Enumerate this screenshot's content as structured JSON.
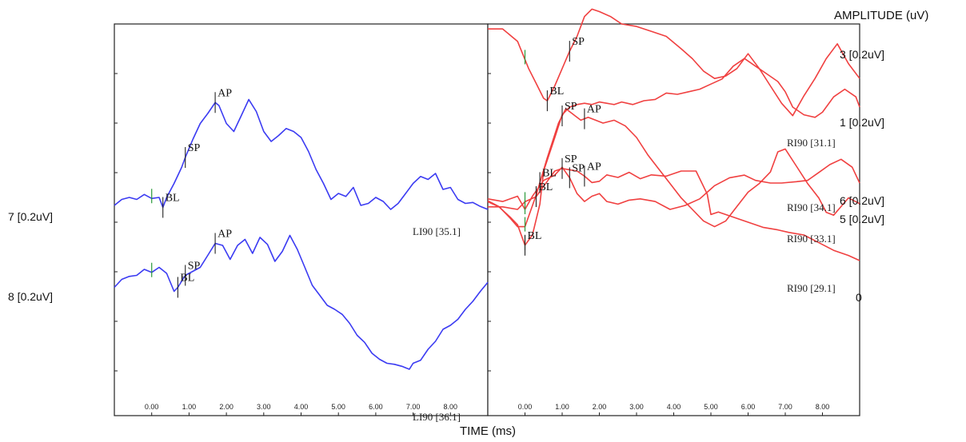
{
  "axis_title_right": "AMPLITUDE (uV)",
  "axis_title_bottom": "TIME (ms)",
  "left_labels": [
    "7 [0.2uV]",
    "8 [0.2uV]"
  ],
  "right_labels": [
    "3 [0.2uV]",
    "1 [0.2uV]",
    "6 [0.2uV]",
    "5 [0.2uV]",
    "0"
  ],
  "colors": {
    "left_traces": "#3b3bf2",
    "right_traces": "#f04040",
    "marker": "#222222",
    "stim_marker": "#2a9a3a",
    "axes": "#222222"
  },
  "chart_data": [
    {
      "type": "line",
      "panel": "left",
      "xlim": [
        -1.0,
        9.0
      ],
      "x_ticks": [
        "0.00",
        "1.00",
        "2.00",
        "3.00",
        "4.00",
        "5.00",
        "6.00",
        "7.00",
        "8.00"
      ],
      "series": [
        {
          "id": "trace-7",
          "x": [
            -1.0,
            -0.8,
            -0.6,
            -0.4,
            -0.2,
            0.0,
            0.2,
            0.3,
            0.4,
            0.6,
            0.8,
            0.9,
            1.1,
            1.3,
            1.5,
            1.7,
            1.8,
            2.0,
            2.2,
            2.4,
            2.6,
            2.8,
            3.0,
            3.2,
            3.4,
            3.6,
            3.8,
            4.0,
            4.2,
            4.4,
            4.6,
            4.8,
            5.0,
            5.2,
            5.4,
            5.6,
            5.8,
            6.0,
            6.2,
            6.4,
            6.6,
            6.8,
            7.0,
            7.2,
            7.4,
            7.6,
            7.8,
            8.0,
            8.2,
            8.4,
            8.6,
            8.8,
            9.0
          ],
          "y": [
            0.2,
            0.5,
            0.6,
            0.5,
            0.75,
            0.55,
            0.6,
            0.1,
            0.6,
            1.3,
            2.1,
            2.6,
            3.5,
            4.3,
            4.8,
            5.35,
            5.2,
            4.3,
            3.9,
            4.7,
            5.5,
            4.9,
            3.9,
            3.4,
            3.7,
            4.05,
            3.9,
            3.6,
            2.9,
            2.0,
            1.3,
            0.5,
            0.8,
            0.65,
            1.1,
            0.2,
            0.3,
            0.6,
            0.4,
            0.0,
            0.3,
            0.8,
            1.3,
            1.65,
            1.5,
            1.8,
            1.0,
            1.1,
            0.5,
            0.3,
            0.35,
            0.15,
            0.0
          ],
          "markers": [
            {
              "label": "BL",
              "x": 0.3
            },
            {
              "label": "SP",
              "x": 0.9
            },
            {
              "label": "AP",
              "x": 1.7
            }
          ],
          "end_label": "LI90 [35.1]"
        },
        {
          "id": "trace-8",
          "x": [
            -1.0,
            -0.8,
            -0.6,
            -0.4,
            -0.2,
            0.0,
            0.2,
            0.4,
            0.6,
            0.7,
            0.9,
            1.1,
            1.3,
            1.5,
            1.7,
            1.9,
            2.1,
            2.3,
            2.5,
            2.7,
            2.9,
            3.1,
            3.3,
            3.5,
            3.7,
            3.9,
            4.1,
            4.3,
            4.5,
            4.7,
            4.9,
            5.1,
            5.3,
            5.5,
            5.7,
            5.9,
            6.1,
            6.3,
            6.5,
            6.7,
            6.9,
            7.0,
            7.2,
            7.4,
            7.6,
            7.8,
            8.0,
            8.2,
            8.4,
            8.6,
            8.8,
            9.0
          ],
          "y": [
            0.5,
            0.9,
            1.05,
            1.1,
            1.4,
            1.25,
            1.5,
            1.2,
            0.3,
            0.5,
            1.1,
            1.3,
            1.5,
            2.1,
            2.7,
            2.6,
            1.9,
            2.6,
            2.9,
            2.2,
            3.0,
            2.65,
            1.8,
            2.3,
            3.1,
            2.4,
            1.5,
            0.6,
            0.1,
            -0.4,
            -0.6,
            -0.85,
            -1.3,
            -1.9,
            -2.25,
            -2.8,
            -3.1,
            -3.3,
            -3.35,
            -3.45,
            -3.6,
            -3.3,
            -3.15,
            -2.6,
            -2.2,
            -1.6,
            -1.4,
            -1.1,
            -0.6,
            -0.2,
            0.3,
            0.75
          ],
          "markers": [
            {
              "label": "BL",
              "x": 0.7
            },
            {
              "label": "SP",
              "x": 0.9
            },
            {
              "label": "AP",
              "x": 1.7
            }
          ],
          "end_label": "LI90 [36.1]"
        }
      ]
    },
    {
      "type": "line",
      "panel": "right",
      "xlim": [
        -1.0,
        9.0
      ],
      "x_ticks": [
        "0.00",
        "1.00",
        "2.00",
        "3.00",
        "4.00",
        "5.00",
        "6.00",
        "7.00",
        "8.00"
      ],
      "series": [
        {
          "id": "trace-3",
          "x": [
            -1.0,
            -0.6,
            -0.2,
            0.1,
            0.3,
            0.5,
            0.6,
            0.8,
            1.0,
            1.2,
            1.4,
            1.6,
            1.8,
            2.0,
            2.3,
            2.6,
            3.0,
            3.4,
            3.8,
            4.2,
            4.5,
            4.8,
            5.1,
            5.4,
            5.7,
            6.0,
            6.3,
            6.6,
            6.9,
            7.2,
            7.5,
            7.8,
            8.1,
            8.4,
            8.7,
            9.0
          ],
          "y": [
            4.8,
            4.8,
            4.3,
            3.2,
            2.6,
            2.0,
            1.9,
            2.5,
            3.2,
            3.9,
            4.5,
            5.3,
            5.6,
            5.5,
            5.3,
            5.0,
            4.9,
            4.7,
            4.5,
            4.0,
            3.6,
            3.1,
            2.8,
            2.9,
            3.2,
            3.8,
            3.2,
            2.5,
            1.8,
            1.3,
            2.1,
            2.8,
            3.6,
            4.2,
            3.4,
            2.8
          ],
          "markers": [
            {
              "label": "SP",
              "x": 1.2
            },
            {
              "label": "BL",
              "x": 0.6
            }
          ]
        },
        {
          "id": "trace-1",
          "x": [
            -1.0,
            -0.6,
            -0.2,
            0.0,
            0.3,
            0.6,
            0.8,
            1.0,
            1.2,
            1.4,
            1.6,
            1.8,
            2.0,
            2.2,
            2.5,
            2.8,
            3.1,
            3.4,
            3.8,
            4.2,
            4.6,
            4.9,
            5.0,
            5.2,
            5.6,
            6.0,
            6.4,
            6.8,
            7.1,
            7.5,
            7.9,
            8.3,
            8.7,
            9.0
          ],
          "y": [
            0.1,
            0.1,
            0.0,
            0.3,
            0.5,
            1.1,
            1.5,
            1.6,
            1.55,
            1.5,
            1.3,
            1.05,
            1.1,
            1.35,
            1.25,
            1.45,
            1.2,
            1.35,
            1.3,
            1.5,
            1.5,
            0.6,
            -0.2,
            -0.1,
            -0.3,
            -0.5,
            -0.7,
            -0.8,
            -0.9,
            -1.0,
            -1.3,
            -1.6,
            -1.8,
            -2.0
          ],
          "markers": [
            {
              "label": "BL",
              "x": 0.3
            },
            {
              "label": "SP",
              "x": 1.0
            },
            {
              "label": "AP",
              "x": 1.6
            }
          ],
          "end_label": "RI90 [31.1]"
        },
        {
          "id": "trace-6",
          "x": [
            -1.0,
            -0.6,
            -0.2,
            0.0,
            0.2,
            0.5,
            0.8,
            1.0,
            1.2,
            1.4,
            1.6,
            1.8,
            2.0,
            2.2,
            2.5,
            2.8,
            3.1,
            3.5,
            3.9,
            4.3,
            4.7,
            5.1,
            5.5,
            5.9,
            6.2,
            6.6,
            6.9,
            7.3,
            7.6,
            7.9,
            8.2,
            8.5,
            8.8,
            9.0
          ],
          "y": [
            0.4,
            0.3,
            0.5,
            0.0,
            0.5,
            1.1,
            1.3,
            1.6,
            1.2,
            0.6,
            0.3,
            0.5,
            0.6,
            0.3,
            0.2,
            0.35,
            0.4,
            0.3,
            0.0,
            0.15,
            0.4,
            0.9,
            1.2,
            1.3,
            1.1,
            1.0,
            1.0,
            1.05,
            1.1,
            1.4,
            1.7,
            1.9,
            1.6,
            1.0
          ],
          "markers": [
            {
              "label": "SP",
              "x": 1.2
            }
          ],
          "end_label": "RI90 [34.1]"
        },
        {
          "id": "trace-5",
          "x": [
            -1.0,
            -0.7,
            -0.4,
            -0.2,
            0.0,
            0.3,
            0.6,
            0.9,
            1.1,
            1.3,
            1.5,
            1.7,
            1.9,
            2.1,
            2.4,
            2.7,
            3.0,
            3.3,
            3.6,
            3.9,
            4.2,
            4.5,
            4.8,
            5.1,
            5.4,
            5.7,
            6.0,
            6.3,
            6.6,
            6.8,
            7.0,
            7.3,
            7.6,
            7.9,
            8.1,
            8.3,
            8.5,
            8.7,
            9.0
          ],
          "y": [
            0.3,
            0.1,
            -0.3,
            -0.6,
            -0.6,
            0.5,
            1.8,
            3.0,
            3.5,
            3.3,
            3.1,
            3.2,
            3.1,
            3.0,
            3.1,
            2.9,
            2.5,
            1.9,
            1.4,
            0.9,
            0.4,
            0.0,
            -0.4,
            -0.6,
            -0.4,
            0.1,
            0.6,
            0.9,
            1.3,
            2.0,
            2.1,
            1.5,
            0.9,
            0.4,
            -0.1,
            -0.2,
            0.1,
            0.4,
            0.2
          ],
          "markers": [
            {
              "label": "BL",
              "x": 0.4
            },
            {
              "label": "SP",
              "x": 1.0
            },
            {
              "label": "AP",
              "x": 1.6
            }
          ],
          "end_label": "RI90 [33.1]"
        },
        {
          "id": "trace-0",
          "x": [
            -1.0,
            -0.7,
            -0.4,
            -0.2,
            0.0,
            0.2,
            0.4,
            0.5,
            0.8,
            1.0,
            1.2,
            1.4,
            1.6,
            1.8,
            2.0,
            2.2,
            2.4,
            2.6,
            2.9,
            3.2,
            3.5,
            3.8,
            4.1,
            4.4,
            4.7,
            5.0,
            5.3,
            5.6,
            5.9,
            6.2,
            6.5,
            6.8,
            7.0,
            7.2,
            7.5,
            7.8,
            8.0,
            8.3,
            8.6,
            8.9,
            9.0
          ],
          "y": [
            0.3,
            0.1,
            -0.3,
            -0.6,
            -1.4,
            -1.0,
            0.2,
            1.5,
            2.8,
            3.7,
            4.0,
            4.1,
            4.15,
            4.1,
            4.2,
            4.15,
            4.1,
            4.2,
            4.1,
            4.25,
            4.3,
            4.55,
            4.5,
            4.6,
            4.7,
            4.9,
            5.1,
            5.6,
            5.9,
            5.6,
            5.3,
            5.0,
            4.6,
            4.0,
            3.7,
            3.6,
            3.8,
            4.4,
            4.7,
            4.4,
            4.0
          ],
          "markers": [
            {
              "label": "BL",
              "x": 0.0
            }
          ],
          "end_label": "RI90 [29.1]"
        }
      ]
    }
  ]
}
